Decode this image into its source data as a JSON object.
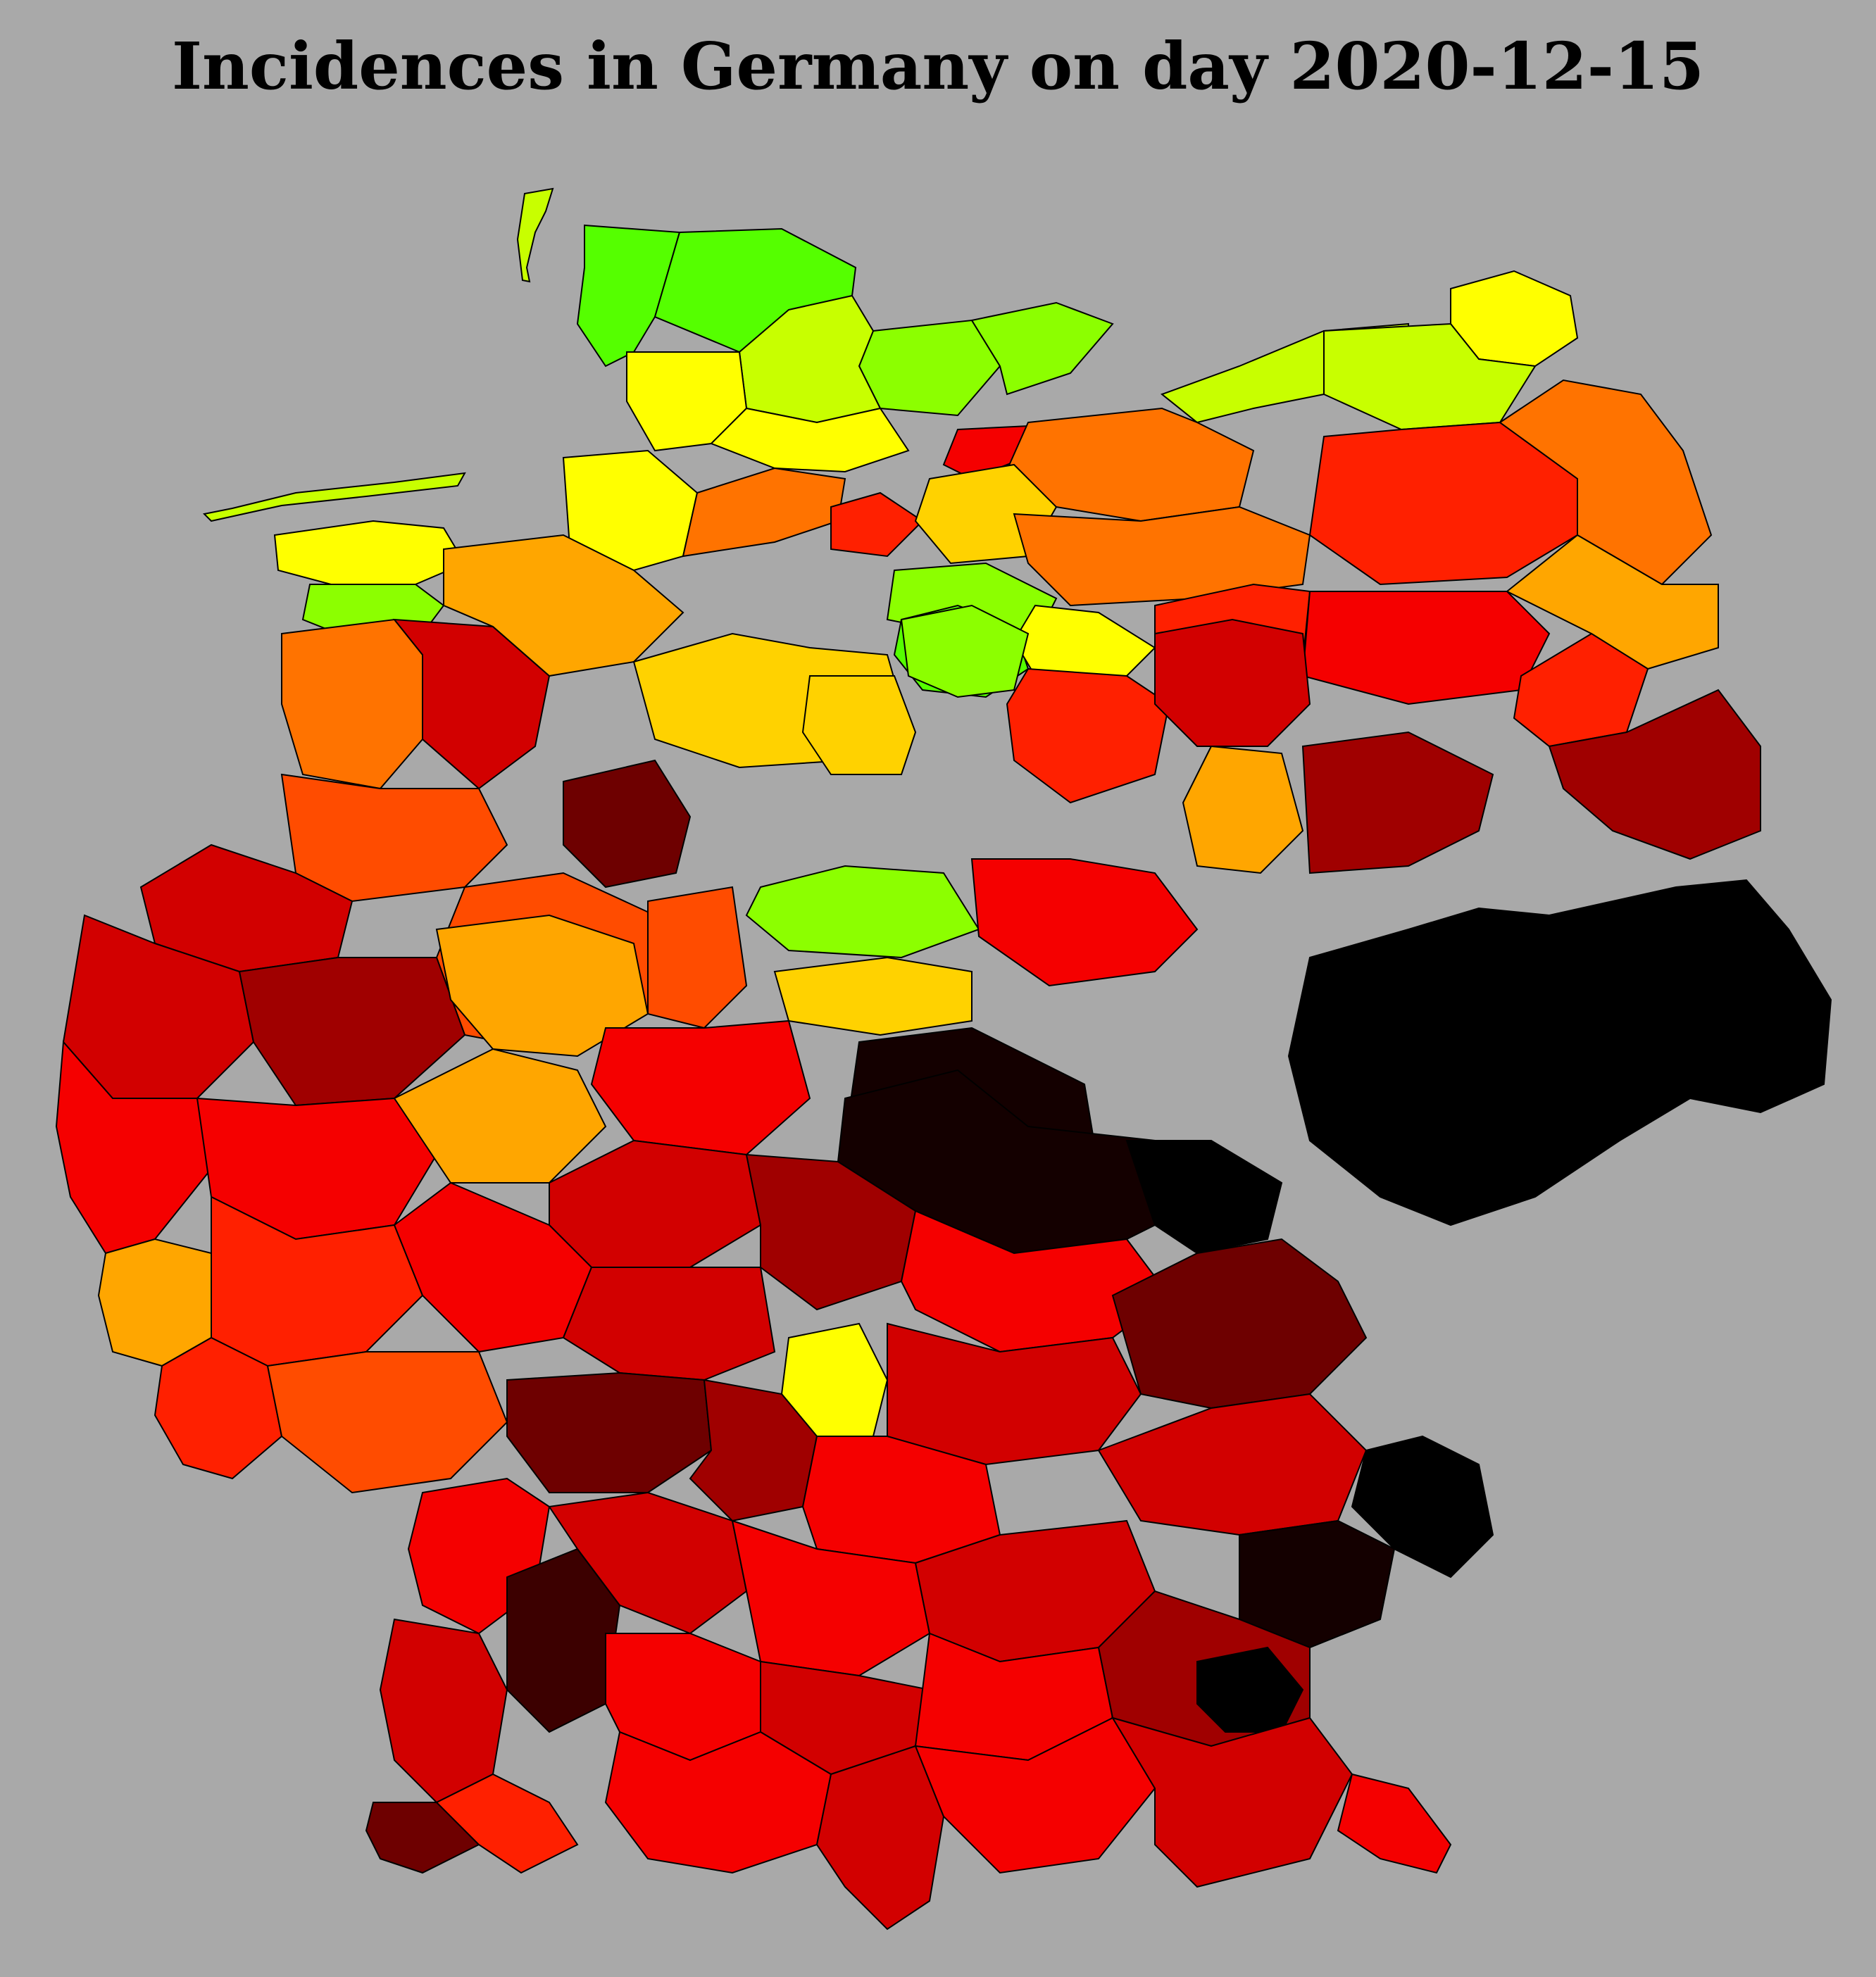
{
  "title": "Incidences in Germany on day 2020-12-15",
  "background": "#a9a9a9",
  "incidence_palette": [
    "#55ff00",
    "#8cff00",
    "#c8ff00",
    "#ffff00",
    "#ffd200",
    "#ffa600",
    "#ff7300",
    "#ff4c00",
    "#ff2000",
    "#f50000",
    "#d20000",
    "#a00000",
    "#6e0000",
    "#3c0000",
    "#140000",
    "#000000"
  ],
  "regions": [
    {
      "id": "schleswig-west",
      "level": 0
    },
    {
      "id": "nordfriesland",
      "level": 0
    },
    {
      "id": "schleswig-east",
      "level": 1
    },
    {
      "id": "ostholstein",
      "level": 2
    },
    {
      "id": "dithmarschen",
      "level": 3
    },
    {
      "id": "rendsburg",
      "level": 3
    },
    {
      "id": "kiel-ploen",
      "level": 1
    },
    {
      "id": "luebeck",
      "level": 9
    },
    {
      "id": "rostock-coast",
      "level": 2
    },
    {
      "id": "ruegen",
      "level": 3
    },
    {
      "id": "vorpommern",
      "level": 2
    },
    {
      "id": "mecklenburg-north",
      "level": 6
    },
    {
      "id": "mecklenburg-central",
      "level": 8
    },
    {
      "id": "uckermark",
      "level": 6
    },
    {
      "id": "barnim",
      "level": 5
    },
    {
      "id": "frisia-islands",
      "level": 2
    },
    {
      "id": "ostfriesland",
      "level": 3
    },
    {
      "id": "emsland-north",
      "level": 1
    },
    {
      "id": "cuxhaven",
      "level": 3
    },
    {
      "id": "stade",
      "level": 6
    },
    {
      "id": "hamburg-south",
      "level": 8
    },
    {
      "id": "lueneburg",
      "level": 4
    },
    {
      "id": "uelzen",
      "level": 1
    },
    {
      "id": "gifhorn",
      "level": 0
    },
    {
      "id": "altmark",
      "level": 3
    },
    {
      "id": "prignitz",
      "level": 6
    },
    {
      "id": "havelland",
      "level": 8
    },
    {
      "id": "berlin-north",
      "level": 9
    },
    {
      "id": "oder-spree",
      "level": 8
    },
    {
      "id": "brandenburg-se",
      "level": 11
    },
    {
      "id": "emsland",
      "level": 6
    },
    {
      "id": "osnabrueck",
      "level": 10
    },
    {
      "id": "oldenburg",
      "level": 5
    },
    {
      "id": "hannover",
      "level": 4
    },
    {
      "id": "goettingen",
      "level": 4
    },
    {
      "id": "harz",
      "level": 1
    },
    {
      "id": "magdeburg",
      "level": 8
    },
    {
      "id": "dessau",
      "level": 5
    },
    {
      "id": "leipzig",
      "level": 10
    },
    {
      "id": "lausitz",
      "level": 11
    },
    {
      "id": "muensterland",
      "level": 7
    },
    {
      "id": "ruhr",
      "level": 10
    },
    {
      "id": "sauerland",
      "level": 7
    },
    {
      "id": "paderborn",
      "level": 12
    },
    {
      "id": "kassel",
      "level": 1
    },
    {
      "id": "eichsfeld",
      "level": 4
    },
    {
      "id": "erfurt",
      "level": 9
    },
    {
      "id": "saxony",
      "level": 15
    },
    {
      "id": "vogtland",
      "level": 14
    },
    {
      "id": "rhineland",
      "level": 10
    },
    {
      "id": "cologne",
      "level": 11
    },
    {
      "id": "siegen",
      "level": 5
    },
    {
      "id": "marburg",
      "level": 7
    },
    {
      "id": "fulda",
      "level": 9
    },
    {
      "id": "thuringia-south",
      "level": 14
    },
    {
      "id": "eifel",
      "level": 9
    },
    {
      "id": "koblenz",
      "level": 9
    },
    {
      "id": "taunus",
      "level": 5
    },
    {
      "id": "frankfurt",
      "level": 10
    },
    {
      "id": "wuerzburg",
      "level": 11
    },
    {
      "id": "bamberg",
      "level": 9
    },
    {
      "id": "hof-bayreuth",
      "level": 15
    },
    {
      "id": "trier",
      "level": 5
    },
    {
      "id": "hunsrueck",
      "level": 8
    },
    {
      "id": "mainz",
      "level": 9
    },
    {
      "id": "darmstadt",
      "level": 10
    },
    {
      "id": "main-tauber",
      "level": 3
    },
    {
      "id": "nuremberg",
      "level": 10
    },
    {
      "id": "upper-palatinate",
      "level": 12
    },
    {
      "id": "saar",
      "level": 8
    },
    {
      "id": "pfalz",
      "level": 7
    },
    {
      "id": "mannheim",
      "level": 12
    },
    {
      "id": "heilbronn",
      "level": 11
    },
    {
      "id": "ansbach",
      "level": 9
    },
    {
      "id": "regensburg",
      "level": 10
    },
    {
      "id": "cham",
      "level": 15
    },
    {
      "id": "karlsruhe",
      "level": 9
    },
    {
      "id": "black-forest-north",
      "level": 13
    },
    {
      "id": "stuttgart",
      "level": 10
    },
    {
      "id": "ostalb",
      "level": 9
    },
    {
      "id": "ingolstadt",
      "level": 10
    },
    {
      "id": "deggendorf",
      "level": 14
    },
    {
      "id": "freiburg",
      "level": 10
    },
    {
      "id": "tuebingen",
      "level": 9
    },
    {
      "id": "ulm",
      "level": 10
    },
    {
      "id": "augsburg",
      "level": 9
    },
    {
      "id": "landshut",
      "level": 11
    },
    {
      "id": "passau",
      "level": 15
    },
    {
      "id": "loerrach",
      "level": 12
    },
    {
      "id": "konstanz",
      "level": 8
    },
    {
      "id": "ravensburg",
      "level": 9
    },
    {
      "id": "allgaeu",
      "level": 10
    },
    {
      "id": "munich",
      "level": 9
    },
    {
      "id": "rosenheim",
      "level": 10
    },
    {
      "id": "berchtesgaden",
      "level": 9
    }
  ]
}
